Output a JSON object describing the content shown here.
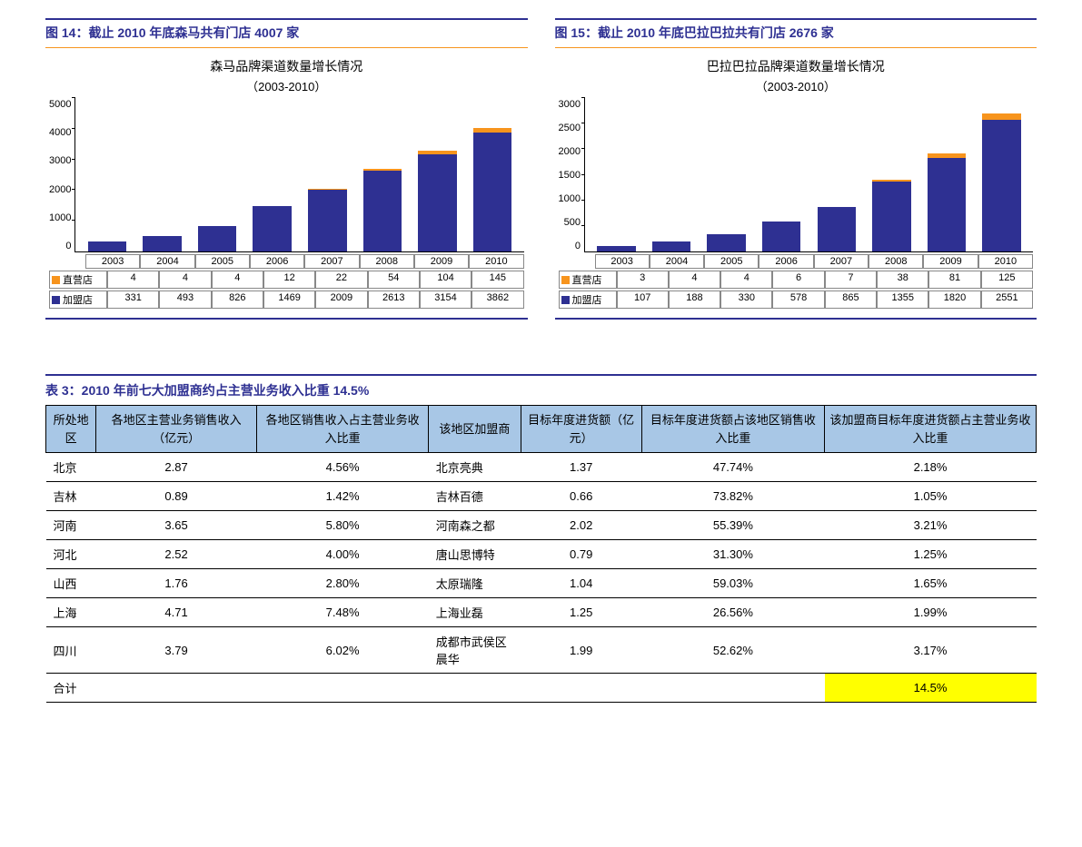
{
  "charts": [
    {
      "caption": "图 14：截止 2010 年底森马共有门店 4007 家",
      "title": "森马品牌渠道数量增长情况",
      "subtitle": "（2003-2010）",
      "type": "stacked-bar",
      "colors": {
        "franchise": "#2e3092",
        "direct": "#f7941d",
        "grid": "#888888",
        "text": "#000000"
      },
      "ylim": [
        0,
        5000
      ],
      "ytick_step": 1000,
      "yticks": [
        "0",
        "1000",
        "2000",
        "3000",
        "4000",
        "5000"
      ],
      "categories": [
        "2003",
        "2004",
        "2005",
        "2006",
        "2007",
        "2008",
        "2009",
        "2010"
      ],
      "series": [
        {
          "name": "直营店",
          "legend": "直营店",
          "color": "#f7941d",
          "values": [
            4,
            4,
            4,
            12,
            22,
            54,
            104,
            145
          ]
        },
        {
          "name": "加盟店",
          "legend": "加盟店",
          "color": "#2e3092",
          "values": [
            331,
            493,
            826,
            1469,
            2009,
            2613,
            3154,
            3862
          ]
        }
      ]
    },
    {
      "caption": "图 15：截止 2010 年底巴拉巴拉共有门店 2676 家",
      "title": "巴拉巴拉品牌渠道数量增长情况",
      "subtitle": "（2003-2010）",
      "type": "stacked-bar",
      "colors": {
        "franchise": "#2e3092",
        "direct": "#f7941d",
        "grid": "#888888",
        "text": "#000000"
      },
      "ylim": [
        0,
        3000
      ],
      "ytick_step": 500,
      "yticks": [
        "0",
        "500",
        "1000",
        "1500",
        "2000",
        "2500",
        "3000"
      ],
      "categories": [
        "2003",
        "2004",
        "2005",
        "2006",
        "2007",
        "2008",
        "2009",
        "2010"
      ],
      "series": [
        {
          "name": "直营店",
          "legend": "直营店",
          "color": "#f7941d",
          "values": [
            3,
            4,
            4,
            6,
            7,
            38,
            81,
            125
          ]
        },
        {
          "name": "加盟店",
          "legend": "加盟店",
          "color": "#2e3092",
          "values": [
            107,
            188,
            330,
            578,
            865,
            1355,
            1820,
            2551
          ]
        }
      ]
    }
  ],
  "table": {
    "caption": "表 3：2010 年前七大加盟商约占主营业务收入比重 14.5%",
    "columns": [
      "所处地区",
      "各地区主营业务销售收入（亿元）",
      "各地区销售收入占主营业务收入比重",
      "该地区加盟商",
      "目标年度进货额（亿元）",
      "目标年度进货额占该地区销售收入比重",
      "该加盟商目标年度进货额占主营业务收入比重"
    ],
    "rows": [
      [
        "北京",
        "2.87",
        "4.56%",
        "北京亮典",
        "1.37",
        "47.74%",
        "2.18%"
      ],
      [
        "吉林",
        "0.89",
        "1.42%",
        "吉林百德",
        "0.66",
        "73.82%",
        "1.05%"
      ],
      [
        "河南",
        "3.65",
        "5.80%",
        "河南森之都",
        "2.02",
        "55.39%",
        "3.21%"
      ],
      [
        "河北",
        "2.52",
        "4.00%",
        "唐山思博特",
        "0.79",
        "31.30%",
        "1.25%"
      ],
      [
        "山西",
        "1.76",
        "2.80%",
        "太原瑞隆",
        "1.04",
        "59.03%",
        "1.65%"
      ],
      [
        "上海",
        "4.71",
        "7.48%",
        "上海业磊",
        "1.25",
        "26.56%",
        "1.99%"
      ],
      [
        "四川",
        "3.79",
        "6.02%",
        "成都市武侯区晨华",
        "1.99",
        "52.62%",
        "3.17%"
      ]
    ],
    "total": {
      "label": "合计",
      "value": "14.5%",
      "highlight": true
    }
  }
}
